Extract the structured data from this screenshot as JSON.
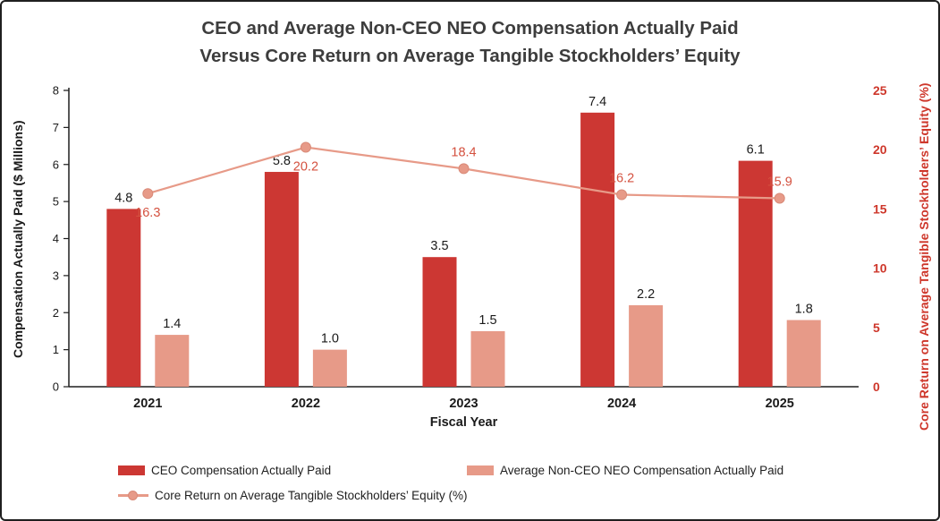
{
  "title": {
    "line1": "CEO and Average Non-CEO NEO Compensation Actually Paid",
    "line2": "Versus Core Return on Average Tangible Stockholders’ Equity"
  },
  "colors": {
    "ceo_bar": "#cc3733",
    "neo_bar": "#e79a88",
    "line": "#e79a88",
    "line_marker_edge": "#d98a78",
    "right_axis_text": "#ce372b",
    "line_label_text": "#d4513f",
    "axis_text": "#1a1a1a",
    "title_text": "#3d3d3d",
    "border": "#1f1f1f"
  },
  "chart_data": {
    "type": "bar+line",
    "title": "CEO and Average Non-CEO NEO Compensation Actually Paid Versus Core Return on Average Tangible Stockholders’ Equity",
    "categories": [
      "2021",
      "2022",
      "2023",
      "2024",
      "2025"
    ],
    "xlabel": "Fiscal Year",
    "ylabel_left": "Compensation Actually Paid ($ Millions)",
    "ylabel_right": "Core Return on Average Tangible Stockholders’ Equity (%)",
    "ylim_left": [
      0,
      8
    ],
    "ylim_right": [
      0,
      25
    ],
    "yticks_left": [
      0,
      1,
      2,
      3,
      4,
      5,
      6,
      7,
      8
    ],
    "yticks_right": [
      0,
      5,
      10,
      15,
      20,
      25
    ],
    "grid": false,
    "legend_position": "bottom-left",
    "series": [
      {
        "name": "CEO Compensation Actually Paid",
        "type": "bar",
        "axis": "left",
        "color": "#cc3733",
        "values": [
          4.8,
          5.8,
          3.5,
          7.4,
          6.1
        ]
      },
      {
        "name": "Average Non-CEO NEO Compensation Actually Paid",
        "type": "bar",
        "axis": "left",
        "color": "#e79a88",
        "values": [
          1.4,
          1.0,
          1.5,
          2.2,
          1.8
        ]
      },
      {
        "name": "Core Return on Average Tangible Stockholders’ Equity (%)",
        "type": "line",
        "axis": "right",
        "color": "#e79a88",
        "marker_edge": "#d98a78",
        "values": [
          16.3,
          20.2,
          18.4,
          16.2,
          15.9
        ],
        "label_side": [
          "below",
          "below",
          "above",
          "above",
          "above"
        ]
      }
    ]
  }
}
